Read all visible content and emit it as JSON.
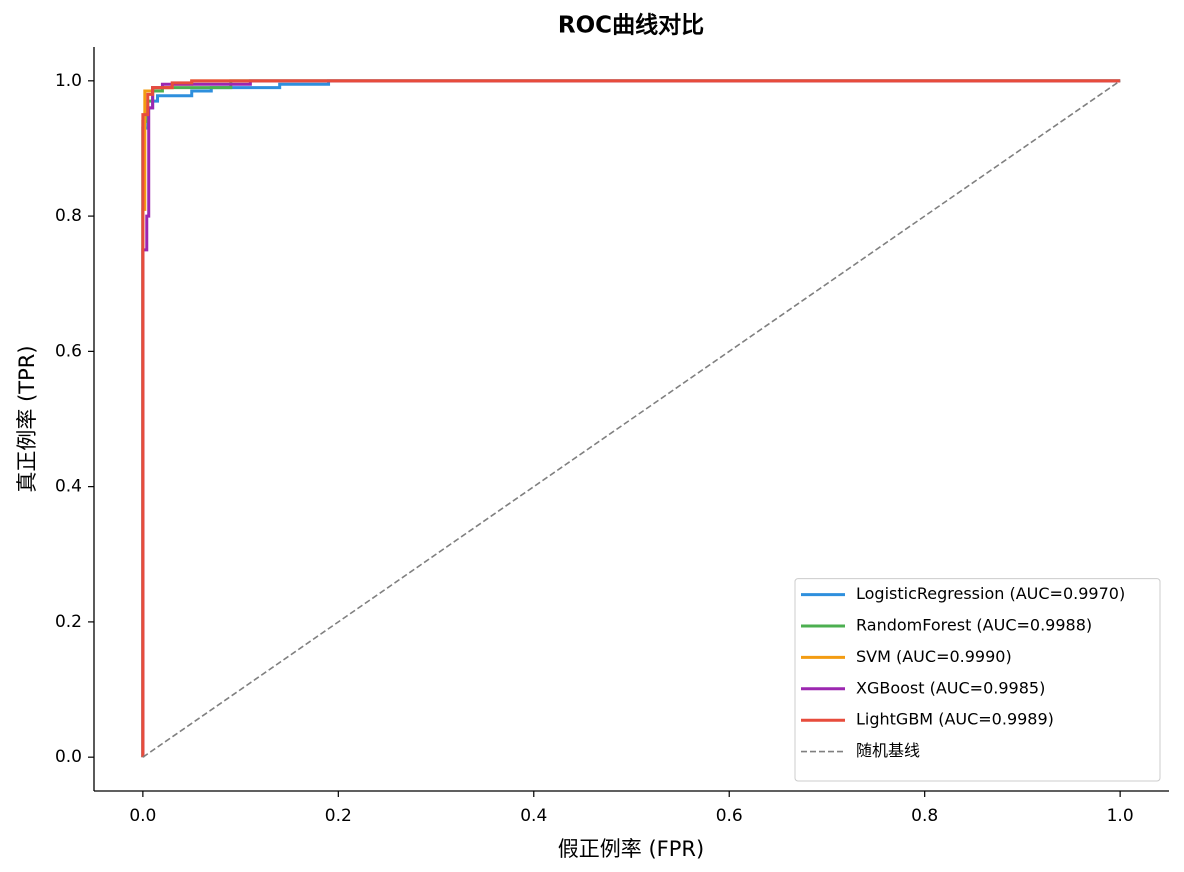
{
  "chart_data": {
    "type": "line",
    "title": "ROC曲线对比",
    "x_label": "假正例率 (FPR)",
    "y_label": "真正例率 (TPR)",
    "xlim": [
      -0.05,
      1.05
    ],
    "ylim": [
      -0.05,
      1.05
    ],
    "xticks": [
      {
        "value": 0,
        "label": "0.0"
      },
      0.2,
      0.4,
      0.6,
      0.8,
      {
        "value": 1,
        "label": "1.0"
      }
    ],
    "yticks": [
      {
        "value": 0,
        "label": "0.0"
      },
      0.2,
      0.4,
      0.6,
      0.8,
      {
        "value": 1,
        "label": "1.0"
      }
    ],
    "grid": false,
    "legend": "lower right",
    "series": [
      {
        "name": "LogisticRegression (AUC=0.9970)",
        "color": "#2e8fdd",
        "style": "solid",
        "x": [
          0,
          0,
          0.005,
          0.005,
          0.01,
          0.01,
          0.015,
          0.015,
          0.05,
          0.05,
          0.07,
          0.07,
          0.14,
          0.14,
          0.19,
          0.19,
          1
        ],
        "values": [
          0,
          0.93,
          0.93,
          0.96,
          0.96,
          0.97,
          0.97,
          0.978,
          0.978,
          0.985,
          0.985,
          0.99,
          0.99,
          0.995,
          0.995,
          1,
          1
        ]
      },
      {
        "name": "RandomForest (AUC=0.9988)",
        "color": "#4caf50",
        "style": "solid",
        "x": [
          0,
          0,
          0.005,
          0.005,
          0.01,
          0.01,
          0.02,
          0.02,
          0.09,
          0.09,
          1
        ],
        "values": [
          0,
          0.94,
          0.94,
          0.97,
          0.97,
          0.985,
          0.985,
          0.99,
          0.99,
          1,
          1
        ]
      },
      {
        "name": "SVM (AUC=0.9990)",
        "color": "#f39c12",
        "style": "solid",
        "x": [
          0,
          0,
          0.002,
          0.002,
          0.01,
          0.01,
          0.03,
          0.03,
          0.05,
          0.05,
          1
        ],
        "values": [
          0,
          0.81,
          0.81,
          0.985,
          0.985,
          0.99,
          0.99,
          0.995,
          0.995,
          1,
          1
        ]
      },
      {
        "name": "XGBoost (AUC=0.9985)",
        "color": "#9c27b0",
        "style": "solid",
        "x": [
          0,
          0,
          0.004,
          0.004,
          0.006,
          0.006,
          0.01,
          0.01,
          0.02,
          0.02,
          0.11,
          0.11,
          1
        ],
        "values": [
          0,
          0.75,
          0.75,
          0.8,
          0.8,
          0.96,
          0.96,
          0.99,
          0.99,
          0.995,
          0.995,
          1,
          1
        ]
      },
      {
        "name": "LightGBM (AUC=0.9989)",
        "color": "#e74c3c",
        "style": "solid",
        "x": [
          0,
          0,
          0.005,
          0.005,
          0.01,
          0.01,
          0.03,
          0.03,
          0.05,
          0.05,
          1
        ],
        "values": [
          0,
          0.95,
          0.95,
          0.98,
          0.98,
          0.99,
          0.99,
          0.997,
          0.997,
          1,
          1
        ]
      },
      {
        "name": "随机基线",
        "color": "#808080",
        "style": "dashed",
        "x": [
          0,
          1
        ],
        "values": [
          0,
          1
        ]
      }
    ]
  }
}
